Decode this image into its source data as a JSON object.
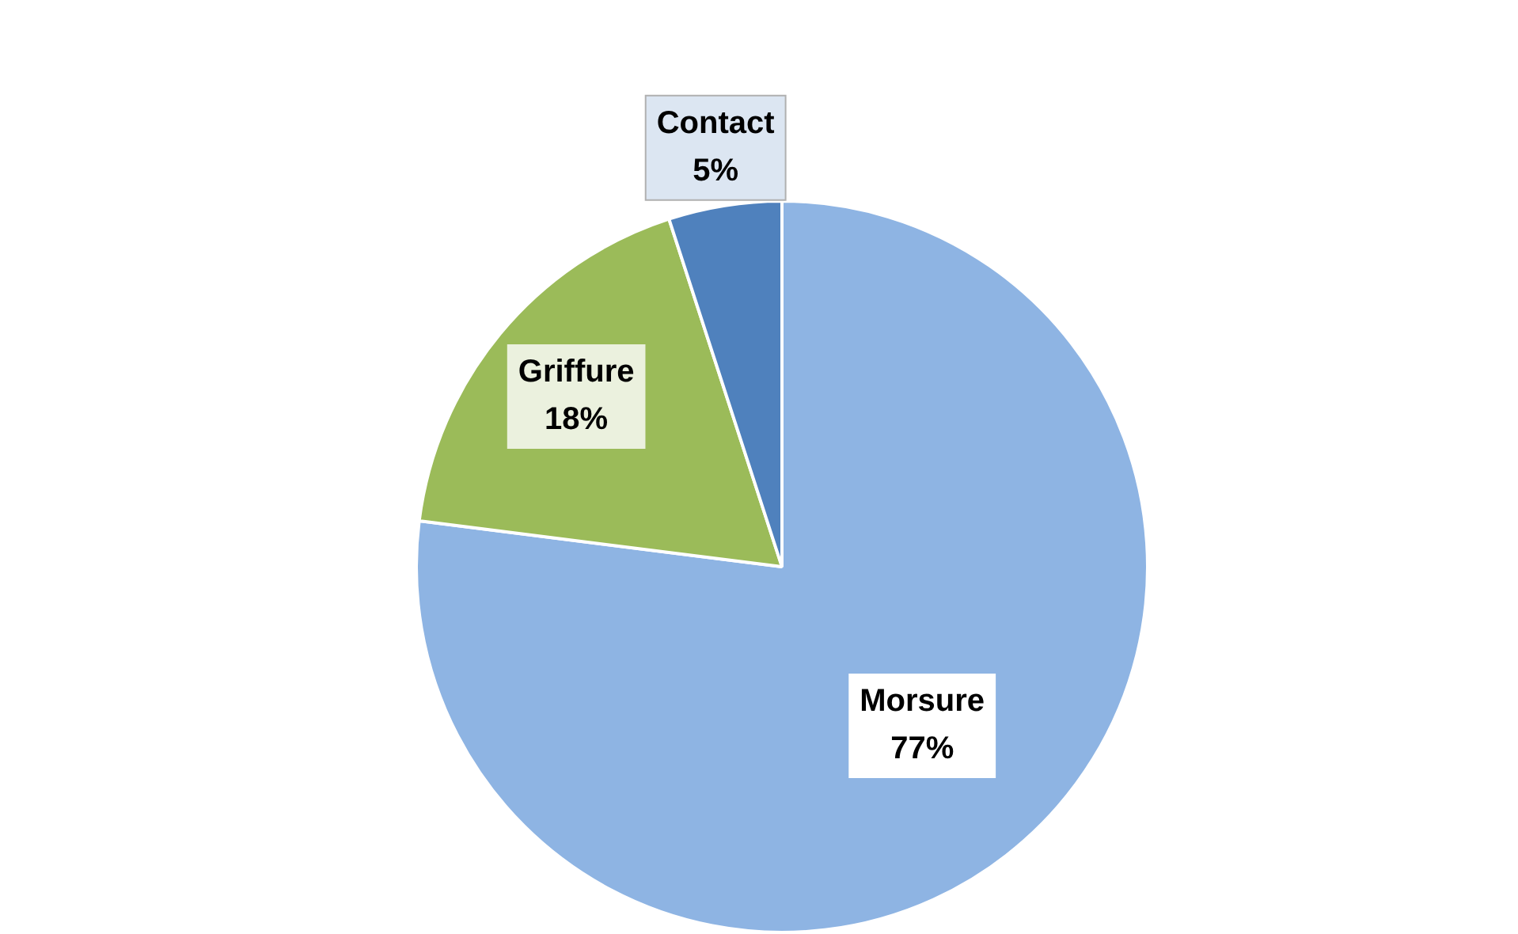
{
  "chart_data": {
    "type": "pie",
    "categories": [
      "Morsure",
      "Griffure",
      "Contact"
    ],
    "values": [
      77,
      18,
      5
    ],
    "colors": [
      "#8eb4e3",
      "#9bbb59",
      "#4f81bd"
    ],
    "value_labels": [
      "77%",
      "18%",
      "5%"
    ]
  }
}
